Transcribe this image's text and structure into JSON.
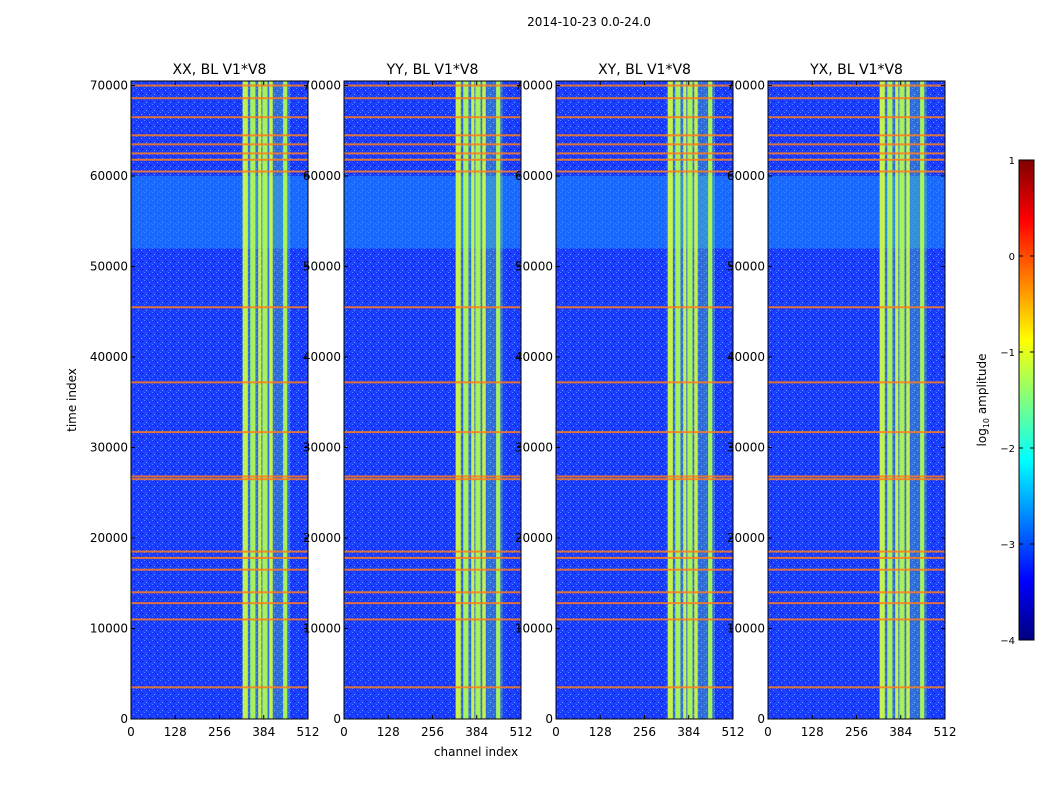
{
  "chart_data": {
    "type": "heatmap",
    "suptitle": "2014-10-23 0.0-24.0",
    "xlabel": "channel index",
    "ylabel": "time index",
    "xlim": [
      0,
      512
    ],
    "ylim": [
      0,
      70500
    ],
    "xticks": [
      0,
      128,
      256,
      384,
      512
    ],
    "yticks": [
      0,
      10000,
      20000,
      30000,
      40000,
      50000,
      60000,
      70000
    ],
    "panels": [
      {
        "title": "XX, BL V1*V8",
        "bright_bands": [
          [
            323,
            338
          ],
          [
            345,
            360
          ],
          [
            368,
            377
          ],
          [
            380,
            395
          ],
          [
            400,
            410
          ],
          [
            440,
            452
          ]
        ]
      },
      {
        "title": "YY, BL V1*V8",
        "bright_bands": [
          [
            323,
            338
          ],
          [
            345,
            360
          ],
          [
            368,
            377
          ],
          [
            380,
            395
          ],
          [
            400,
            410
          ],
          [
            440,
            452
          ]
        ]
      },
      {
        "title": "XY, BL V1*V8",
        "bright_bands": [
          [
            323,
            338
          ],
          [
            345,
            360
          ],
          [
            368,
            377
          ],
          [
            380,
            395
          ],
          [
            400,
            410
          ],
          [
            440,
            452
          ]
        ]
      },
      {
        "title": "YX, BL V1*V8",
        "bright_bands": [
          [
            323,
            338
          ],
          [
            345,
            360
          ],
          [
            368,
            377
          ],
          [
            380,
            395
          ],
          [
            400,
            410
          ],
          [
            440,
            452
          ]
        ]
      }
    ],
    "rfi_time_rows": [
      3500,
      11000,
      12800,
      14000,
      16500,
      17800,
      18500,
      26500,
      26800,
      31700,
      37200,
      45500,
      60500,
      61800,
      62500,
      63500,
      64500,
      66500,
      68600,
      70000
    ],
    "colorbar": {
      "label": "log10 amplitude",
      "label_prefix": "log",
      "label_sub": "10",
      "label_suffix": " amplitude",
      "range": [
        -4,
        1
      ],
      "ticks": [
        1,
        0,
        -1,
        -2,
        -3,
        -4
      ],
      "tick_labels": [
        "1",
        "0",
        "−1",
        "−2",
        "−3",
        "−4"
      ],
      "colormap": "jet"
    }
  }
}
